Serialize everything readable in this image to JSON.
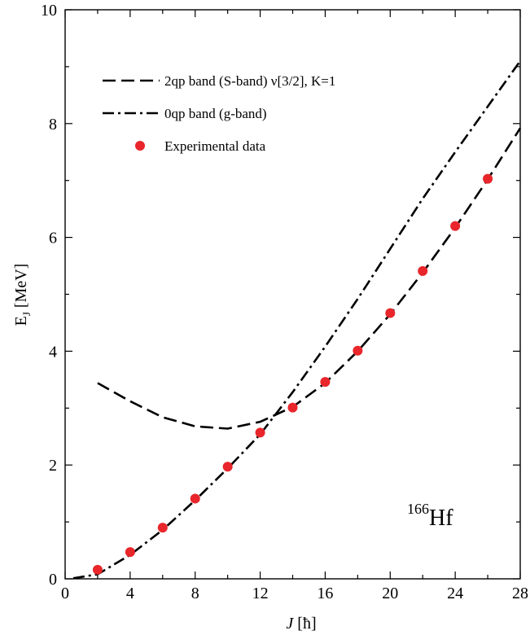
{
  "chart_data": {
    "type": "line",
    "title": "",
    "xlabel": "J",
    "xlabel_unit": "[ħ]",
    "ylabel": "E",
    "ylabel_sub": "J",
    "ylabel_unit": "[MeV]",
    "xlim": [
      0,
      28
    ],
    "ylim": [
      0,
      10
    ],
    "x_ticks": [
      0,
      4,
      8,
      12,
      16,
      20,
      24,
      28
    ],
    "x_tick_labels": [
      "0",
      "4",
      "8",
      "12",
      "16",
      "20",
      "24",
      "28"
    ],
    "y_ticks": [
      0,
      2,
      4,
      6,
      8,
      10
    ],
    "y_tick_labels": [
      "0",
      "2",
      "4",
      "6",
      "8",
      "10"
    ],
    "grid": false,
    "legend_position": "top-left",
    "annotation": {
      "superscript": "166",
      "text": "Hf"
    },
    "colors": {
      "line": "#000000",
      "points": "#e8262b"
    },
    "series": [
      {
        "name": "2qp band (S-band) ν[3/2], K=1",
        "style": "dashed",
        "x": [
          2,
          4,
          6,
          8,
          10,
          12,
          14,
          16,
          18,
          20,
          22,
          24,
          26,
          28
        ],
        "y": [
          3.44,
          3.12,
          2.84,
          2.68,
          2.64,
          2.76,
          3.02,
          3.44,
          4.0,
          4.65,
          5.38,
          6.17,
          7.02,
          7.92
        ]
      },
      {
        "name": "0qp band (g-band)",
        "style": "dash-dot",
        "x": [
          0.5,
          2,
          4,
          6,
          8,
          10,
          12,
          14,
          16,
          18,
          20,
          22,
          24,
          26,
          28
        ],
        "y": [
          0.01,
          0.08,
          0.42,
          0.86,
          1.38,
          1.94,
          2.54,
          3.28,
          4.08,
          4.92,
          5.8,
          6.68,
          7.5,
          8.3,
          9.1
        ]
      },
      {
        "name": "Experimental data",
        "style": "markers",
        "x": [
          2,
          4,
          6,
          8,
          10,
          12,
          14,
          16,
          18,
          20,
          22,
          24,
          26
        ],
        "y": [
          0.16,
          0.47,
          0.9,
          1.41,
          1.97,
          2.57,
          3.01,
          3.46,
          4.01,
          4.67,
          5.41,
          6.2,
          7.03
        ]
      }
    ]
  }
}
